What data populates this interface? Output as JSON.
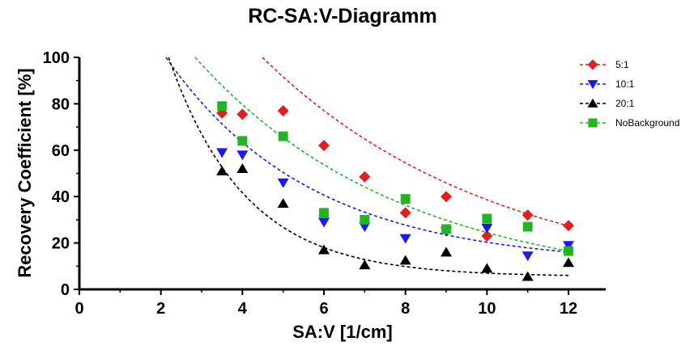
{
  "chart_data": {
    "type": "scatter",
    "title": "RC-SA:V-Diagramm",
    "xlabel": "SA:V [1/cm]",
    "ylabel": "Recovery Coefficient [%]",
    "xlim": [
      0,
      13
    ],
    "ylim": [
      0,
      100
    ],
    "xticks": [
      "0",
      "2",
      "4",
      "6",
      "8",
      "10",
      "12"
    ],
    "yticks": [
      "0",
      "20",
      "40",
      "60",
      "80",
      "100"
    ],
    "grid": false,
    "legend_position": "top-right",
    "series": [
      {
        "name": "5:1",
        "color": "#e02020",
        "marker": "diamond",
        "x": [
          3.5,
          4,
          5,
          6,
          7,
          8,
          9,
          10,
          11,
          12
        ],
        "y": [
          76,
          75.5,
          77,
          62,
          48.5,
          33,
          40,
          23,
          32,
          27.5
        ],
        "fit": {
          "a": 217.17,
          "b": 0.17267,
          "c": 0
        }
      },
      {
        "name": "10:1",
        "color": "#1a1aee",
        "marker": "triangle-down",
        "x": [
          3.5,
          4,
          5,
          6,
          7,
          8,
          9,
          10,
          11,
          12
        ],
        "y": [
          59,
          58,
          46,
          29,
          27,
          22,
          25,
          26.5,
          14.5,
          19
        ],
        "fit": {
          "a": 162.48,
          "b": 0.28077,
          "c": 10.51
        }
      },
      {
        "name": "20:1",
        "color": "#000000",
        "marker": "triangle-up",
        "x": [
          3.5,
          4,
          5,
          6,
          7,
          8,
          9,
          10,
          11,
          12
        ],
        "y": [
          51,
          52,
          37,
          17,
          10.5,
          12.5,
          16,
          9,
          5.5,
          11.5
        ],
        "fit": {
          "a": 301.25,
          "b": 0.53,
          "c": 5.5
        }
      },
      {
        "name": "NoBackground",
        "color": "#22b522",
        "marker": "square",
        "x": [
          3.5,
          4,
          5,
          6,
          7,
          8,
          9,
          10,
          11,
          12
        ],
        "y": [
          79,
          64,
          66,
          33,
          30,
          39,
          26,
          30.5,
          27,
          16.5
        ],
        "fit": {
          "a": 174.74,
          "b": 0.19651,
          "c": 0
        }
      }
    ]
  }
}
